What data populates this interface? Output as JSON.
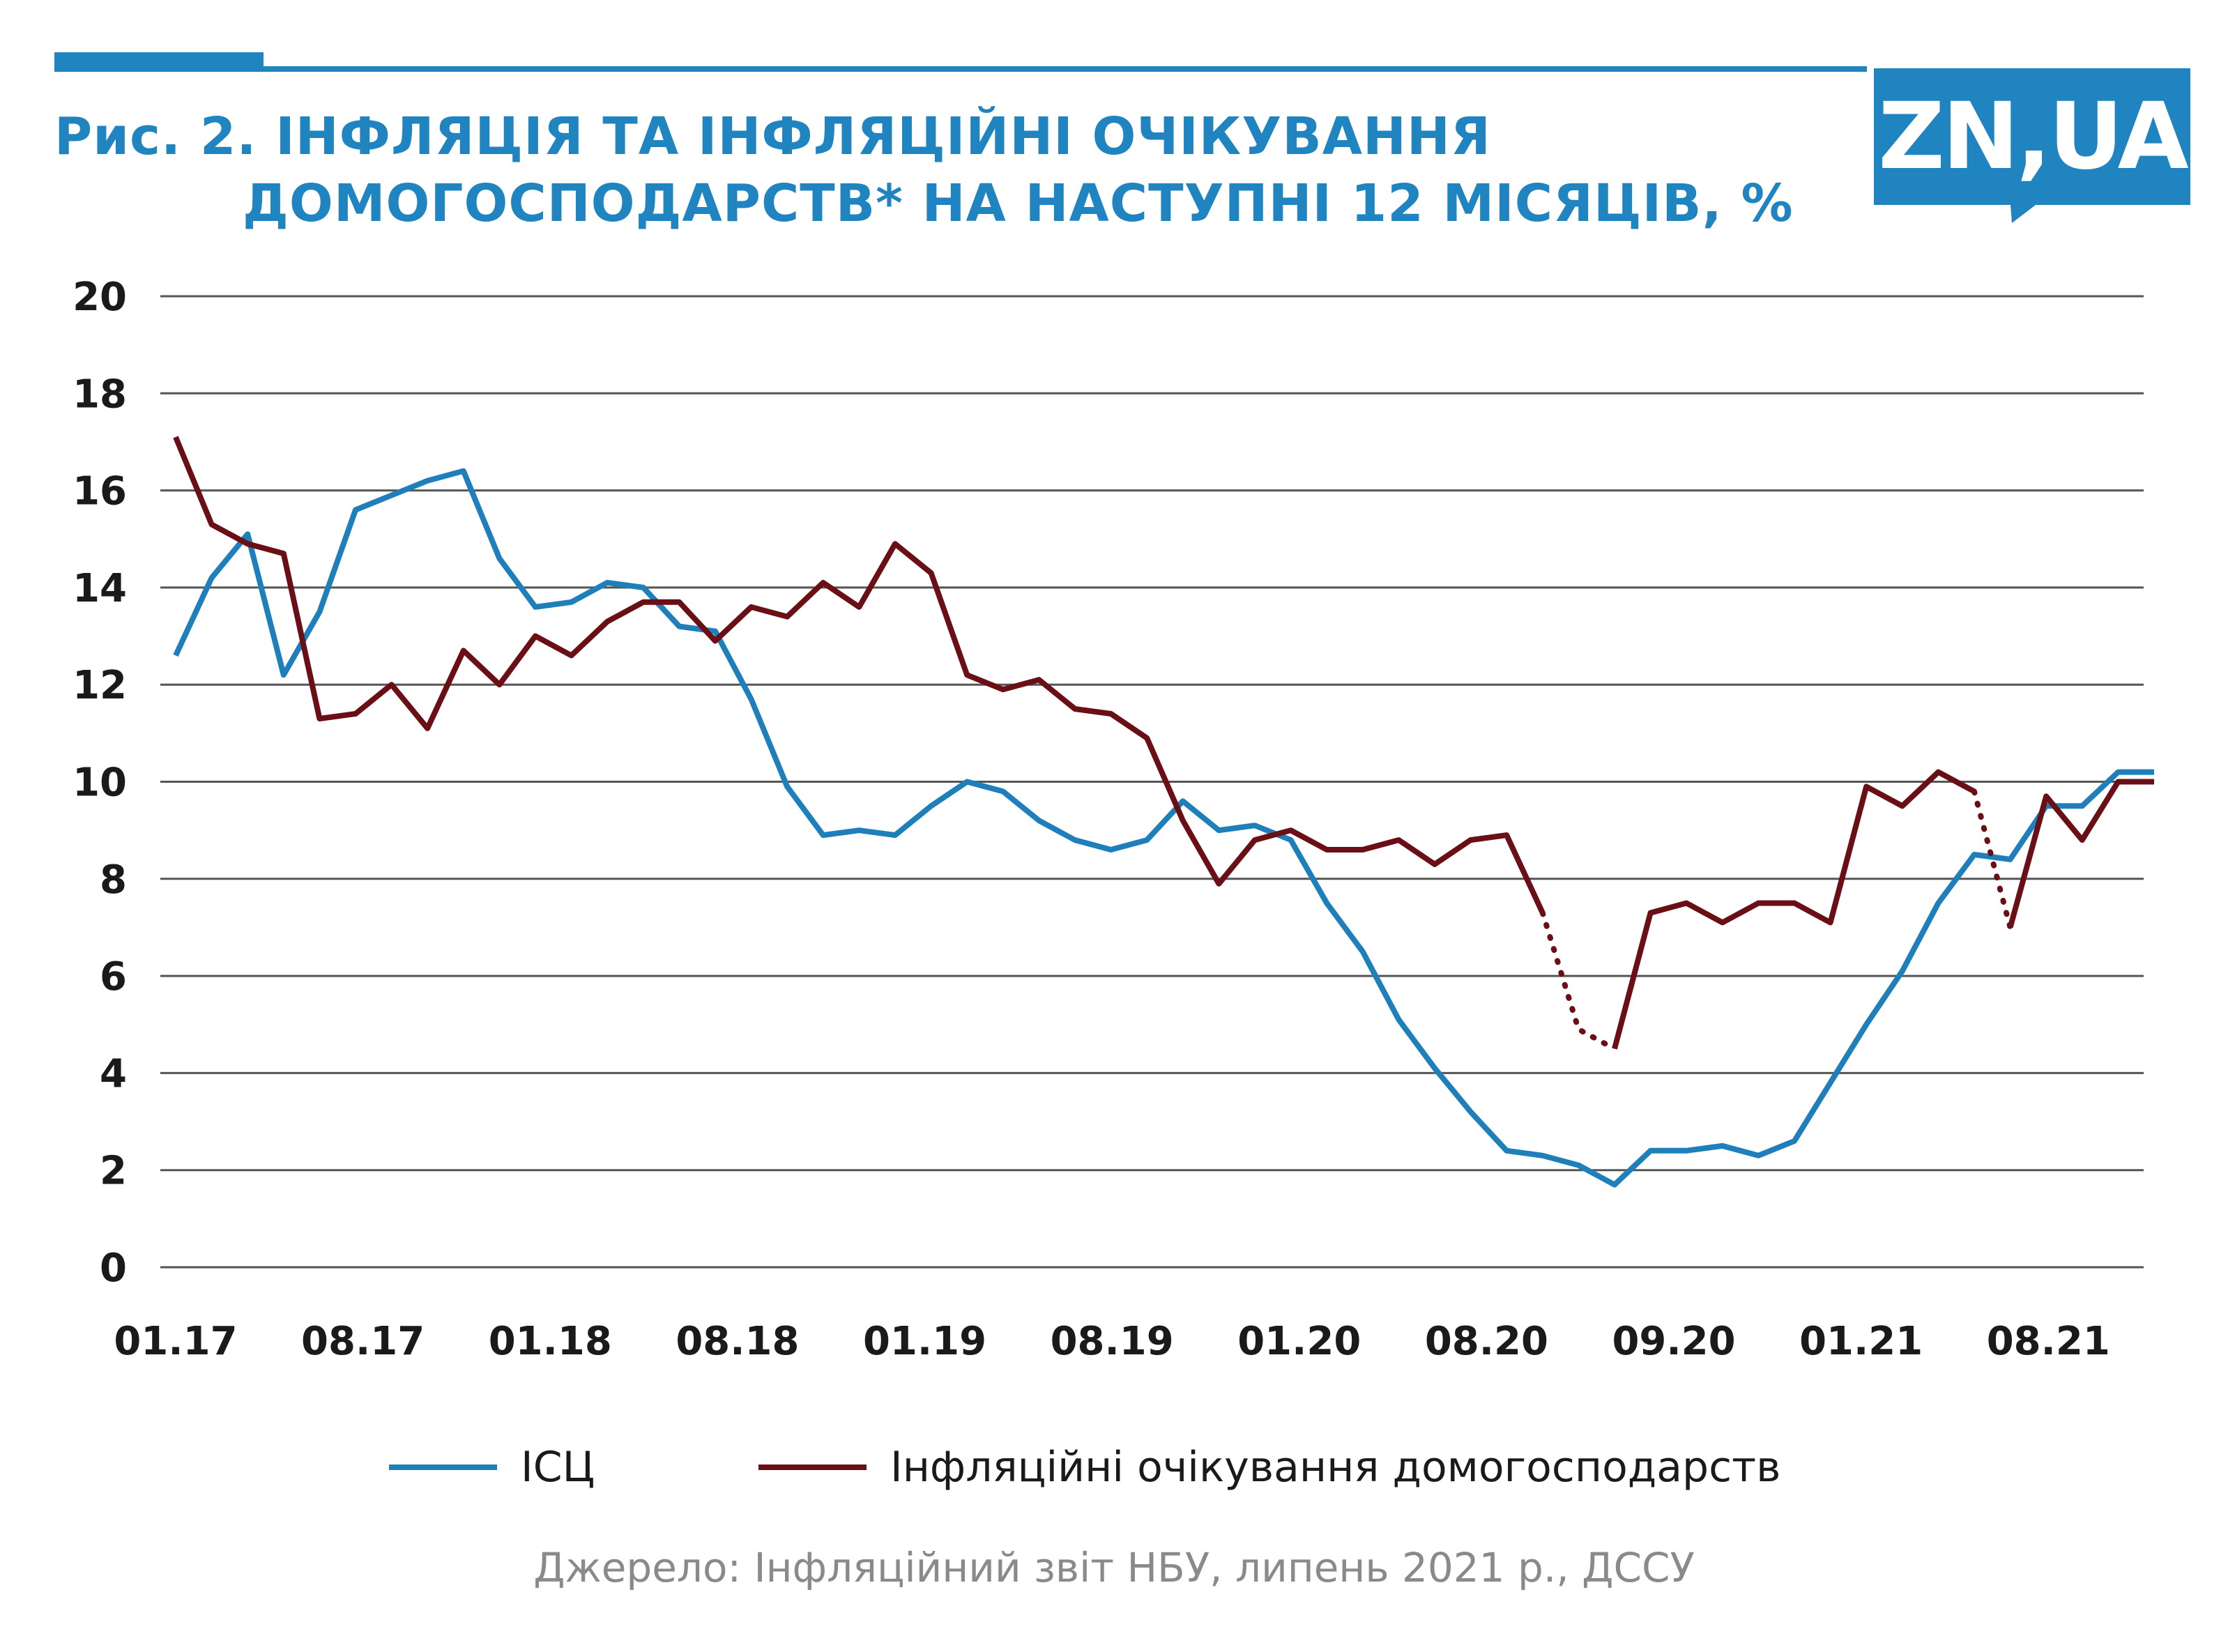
{
  "header": {
    "title_line1": "Рис. 2. ІНФЛЯЦІЯ ТА ІНФЛЯЦІЙНІ ОЧІКУВАННЯ",
    "title_line2": "ДОМОГОСПОДАРСТВ* НА НАСТУПНІ 12 МІСЯЦІВ, %",
    "logo_text": "ZN,UA"
  },
  "colors": {
    "accent": "#1f84bf",
    "cpi": "#1f7fba",
    "expectations": "#6b0f16",
    "grid": "#555555",
    "source_text": "#8a8a8a"
  },
  "legend": {
    "cpi_label": "ІСЦ",
    "expectations_label": "Інфляційні очікування домогосподарств"
  },
  "source": "Джерело: Інфляційний звіт НБУ, липень 2021 р., ДССУ",
  "chart_data": {
    "type": "line",
    "xlabel": "",
    "ylabel": "",
    "ylim": [
      0,
      20
    ],
    "yticks": [
      0,
      2,
      4,
      6,
      8,
      10,
      12,
      14,
      16,
      18,
      20
    ],
    "grid": true,
    "legend_position": "bottom",
    "x_tick_labels": [
      "01.17",
      "08.17",
      "01.18",
      "08.18",
      "01.19",
      "08.19",
      "01.20",
      "08.20",
      "09.20",
      "01.21",
      "08.21"
    ],
    "series": [
      {
        "name": "ІСЦ",
        "values": [
          12.6,
          14.2,
          15.1,
          12.2,
          13.5,
          15.6,
          15.9,
          16.2,
          16.4,
          14.6,
          13.6,
          13.7,
          14.1,
          14.0,
          13.2,
          13.1,
          11.7,
          9.9,
          8.9,
          9.0,
          8.9,
          9.5,
          10.0,
          9.8,
          9.2,
          8.8,
          8.6,
          8.8,
          9.6,
          9.0,
          9.1,
          8.8,
          7.5,
          6.5,
          5.1,
          4.1,
          3.2,
          2.4,
          2.3,
          2.1,
          1.7,
          2.4,
          2.4,
          2.5,
          2.3,
          2.6,
          3.8,
          5.0,
          6.1,
          7.5,
          8.5,
          8.4,
          9.5,
          9.5,
          10.2,
          10.2
        ]
      },
      {
        "name": "Інфляційні очікування домогосподарств",
        "values": [
          17.1,
          15.3,
          14.9,
          14.7,
          11.3,
          11.4,
          12.0,
          11.1,
          12.7,
          12.0,
          13.0,
          12.6,
          13.3,
          13.7,
          13.7,
          12.9,
          13.6,
          13.4,
          14.1,
          13.6,
          14.9,
          14.3,
          12.2,
          11.9,
          12.1,
          11.5,
          11.4,
          10.9,
          9.2,
          7.9,
          8.8,
          9.0,
          8.6,
          8.6,
          8.8,
          8.3,
          8.8,
          8.9,
          7.3,
          4.9,
          4.5,
          7.3,
          7.5,
          7.1,
          7.5,
          7.5,
          7.1,
          9.9,
          9.5,
          10.2,
          9.8,
          7.0,
          9.7,
          8.8,
          10.0,
          10.0
        ],
        "dotted_segments": [
          [
            38,
            40
          ],
          [
            50,
            51
          ]
        ]
      }
    ]
  }
}
